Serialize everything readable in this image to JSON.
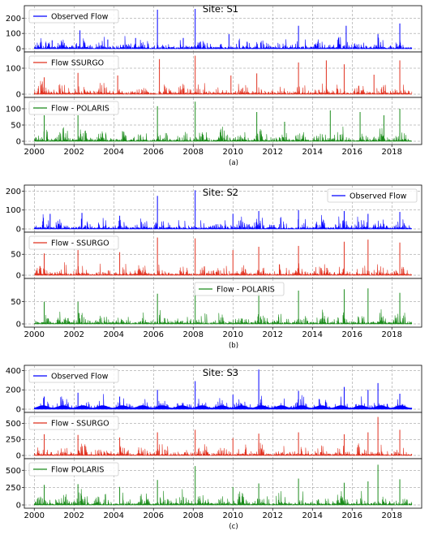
{
  "chart_data": [
    {
      "type": "line",
      "caption": "(a)",
      "title": "Site: S1",
      "x_ticks": [
        "2000",
        "2002",
        "2004",
        "2006",
        "2008",
        "2010",
        "2012",
        "2014",
        "2016",
        "2018"
      ],
      "xlim": [
        1999.5,
        2019.5
      ],
      "panels": [
        {
          "series": {
            "name": "Observed Flow",
            "color": "#0000ff"
          },
          "legend": "top-left",
          "ylim": [
            0,
            260
          ],
          "y_ticks": [
            0,
            100,
            200
          ],
          "peaks": [
            [
              2000.9,
              55
            ],
            [
              2002.3,
              120
            ],
            [
              2003.7,
              60
            ],
            [
              2005.1,
              70
            ],
            [
              2006.2,
              255
            ],
            [
              2007.5,
              70
            ],
            [
              2008.1,
              260
            ],
            [
              2009.8,
              95
            ],
            [
              2011.4,
              40
            ],
            [
              2013.3,
              150
            ],
            [
              2015.7,
              150
            ],
            [
              2017.3,
              95
            ],
            [
              2018.4,
              165
            ]
          ]
        },
        {
          "series": {
            "name": "Flow   SSURGO",
            "color": "#e0301e"
          },
          "legend": "top-left",
          "ylim": [
            0,
            150
          ],
          "y_ticks": [
            0,
            100
          ],
          "peaks": [
            [
              2000.5,
              65
            ],
            [
              2002.2,
              82
            ],
            [
              2004.2,
              72
            ],
            [
              2006.3,
              135
            ],
            [
              2008.1,
              148
            ],
            [
              2009.9,
              72
            ],
            [
              2011.2,
              80
            ],
            [
              2013.3,
              122
            ],
            [
              2014.7,
              130
            ],
            [
              2015.6,
              115
            ],
            [
              2017.1,
              75
            ],
            [
              2018.4,
              130
            ]
          ]
        },
        {
          "series": {
            "name": "Flow - POLARIS",
            "color": "#1a8a1a"
          },
          "legend": "top-left",
          "ylim": [
            0,
            125
          ],
          "y_ticks": [
            0,
            50,
            100
          ],
          "peaks": [
            [
              2000.5,
              80
            ],
            [
              2002.2,
              80
            ],
            [
              2006.2,
              108
            ],
            [
              2008.1,
              122
            ],
            [
              2011.2,
              90
            ],
            [
              2012.6,
              60
            ],
            [
              2014.9,
              95
            ],
            [
              2016.4,
              90
            ],
            [
              2017.6,
              80
            ],
            [
              2018.4,
              100
            ]
          ]
        }
      ]
    },
    {
      "type": "line",
      "caption": "(b)",
      "title": "Site: S2",
      "x_ticks": [
        "2000",
        "2002",
        "2004",
        "2006",
        "2008",
        "2010",
        "2012",
        "2014",
        "2016",
        "2018"
      ],
      "xlim": [
        1999.5,
        2019.5
      ],
      "panels": [
        {
          "series": {
            "name": "Observed Flow",
            "color": "#0000ff"
          },
          "legend": "top-right",
          "ylim": [
            0,
            215
          ],
          "y_ticks": [
            0,
            100,
            200
          ],
          "peaks": [
            [
              2000.8,
              80
            ],
            [
              2002.4,
              85
            ],
            [
              2004.3,
              70
            ],
            [
              2006.2,
              175
            ],
            [
              2008.1,
              205
            ],
            [
              2010.0,
              80
            ],
            [
              2011.3,
              95
            ],
            [
              2013.3,
              100
            ],
            [
              2015.6,
              95
            ],
            [
              2016.8,
              80
            ],
            [
              2018.4,
              90
            ]
          ]
        },
        {
          "series": {
            "name": "Flow - SSURGO",
            "color": "#e0301e"
          },
          "legend": "top-left",
          "ylim": [
            0,
            95
          ],
          "y_ticks": [
            0,
            50
          ],
          "peaks": [
            [
              2000.5,
              52
            ],
            [
              2002.2,
              60
            ],
            [
              2004.3,
              55
            ],
            [
              2006.2,
              90
            ],
            [
              2008.1,
              88
            ],
            [
              2010.0,
              60
            ],
            [
              2011.3,
              68
            ],
            [
              2013.3,
              70
            ],
            [
              2015.6,
              80
            ],
            [
              2016.8,
              85
            ],
            [
              2018.4,
              78
            ]
          ]
        },
        {
          "series": {
            "name": "Flow - POLARIS",
            "color": "#1a8a1a"
          },
          "legend": "top-center",
          "ylim": [
            0,
            95
          ],
          "y_ticks": [
            0,
            50
          ],
          "peaks": [
            [
              2000.5,
              50
            ],
            [
              2002.2,
              50
            ],
            [
              2006.2,
              68
            ],
            [
              2008.1,
              78
            ],
            [
              2011.3,
              72
            ],
            [
              2013.3,
              75
            ],
            [
              2015.6,
              78
            ],
            [
              2016.8,
              80
            ],
            [
              2018.4,
              70
            ]
          ]
        }
      ]
    },
    {
      "type": "line",
      "caption": "(c)",
      "title": "Site: S3",
      "x_ticks": [
        "2000",
        "2002",
        "2004",
        "2006",
        "2008",
        "2010",
        "2012",
        "2014",
        "2016",
        "2018"
      ],
      "xlim": [
        1999.5,
        2019.5
      ],
      "panels": [
        {
          "series": {
            "name": "Observed Flow",
            "color": "#0000ff"
          },
          "legend": "top-left",
          "ylim": [
            0,
            420
          ],
          "y_ticks": [
            0,
            200,
            400
          ],
          "peaks": [
            [
              2000.5,
              130
            ],
            [
              2002.2,
              170
            ],
            [
              2004.3,
              130
            ],
            [
              2006.2,
              200
            ],
            [
              2008.1,
              290
            ],
            [
              2010.0,
              150
            ],
            [
              2011.3,
              410
            ],
            [
              2013.3,
              190
            ],
            [
              2015.6,
              230
            ],
            [
              2016.8,
              200
            ],
            [
              2017.3,
              270
            ],
            [
              2018.4,
              160
            ]
          ]
        },
        {
          "series": {
            "name": "Flow - SSURGO",
            "color": "#e0301e"
          },
          "legend": "top-left",
          "ylim": [
            0,
            620
          ],
          "y_ticks": [
            0,
            250,
            500
          ],
          "peaks": [
            [
              2000.5,
              330
            ],
            [
              2002.2,
              320
            ],
            [
              2004.3,
              280
            ],
            [
              2006.2,
              360
            ],
            [
              2008.1,
              400
            ],
            [
              2010.0,
              270
            ],
            [
              2011.3,
              340
            ],
            [
              2013.3,
              360
            ],
            [
              2015.6,
              330
            ],
            [
              2016.8,
              360
            ],
            [
              2017.3,
              600
            ],
            [
              2018.4,
              400
            ]
          ]
        },
        {
          "series": {
            "name": "Flow   POLARIS",
            "color": "#1a8a1a"
          },
          "legend": "top-left",
          "ylim": [
            0,
            620
          ],
          "y_ticks": [
            0,
            250,
            500
          ],
          "peaks": [
            [
              2000.5,
              290
            ],
            [
              2002.2,
              300
            ],
            [
              2004.3,
              260
            ],
            [
              2006.2,
              360
            ],
            [
              2008.1,
              560
            ],
            [
              2010.0,
              260
            ],
            [
              2011.3,
              310
            ],
            [
              2013.3,
              380
            ],
            [
              2015.6,
              320
            ],
            [
              2016.8,
              340
            ],
            [
              2017.3,
              580
            ],
            [
              2018.4,
              370
            ]
          ]
        }
      ]
    }
  ]
}
